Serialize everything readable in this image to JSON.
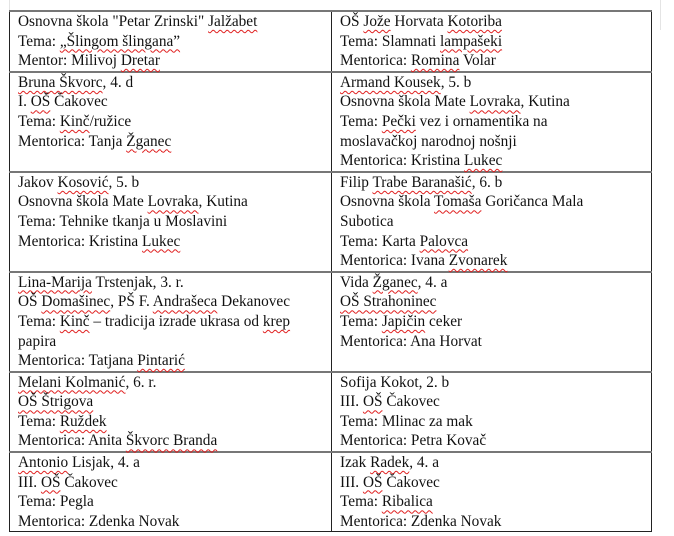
{
  "rows": [
    [
      {
        "lines": [
          "Osnovna škola \"Petar Zrinski\" Jalžabet",
          "Tema:  „Šlingom šlingana”",
          "Mentor: Milivoj Dretar"
        ],
        "misspelled": [
          "Jalžabet",
          "„Šlingom šlingana”",
          "Dretar"
        ]
      },
      {
        "lines": [
          "OŠ Jože Horvata Kotoriba",
          "Tema: Slamnati lampašeki",
          "Mentorica: Romina Volar"
        ],
        "misspelled": [
          "Jože",
          "Kotoriba",
          "lampašeki",
          "Romina"
        ]
      }
    ],
    [
      {
        "lines": [
          "Bruna Škvorc, 4. d",
          "I. OŠ Čakovec",
          "Tema: Kinč/ružice",
          "Mentorica: Tanja Žganec"
        ],
        "misspelled": [
          "Bruna Škvorc",
          "OŠ",
          "Kinč",
          "Žganec"
        ]
      },
      {
        "lines": [
          "Armand Kousek, 5. b",
          "Osnovna škola Mate Lovraka, Kutina",
          "Tema: Pečki vez i ornamentika na",
          "moslavačkoj narodnoj nošnji",
          "Mentorica: Kristina Lukec"
        ],
        "misspelled": [
          "Armand Kousek",
          "Lovraka",
          "Pečki",
          "Lukec"
        ]
      }
    ],
    [
      {
        "lines": [
          "Jakov Kosović, 5. b",
          "Osnovna škola Mate Lovraka, Kutina",
          "Tema: Tehnike tkanja u Moslavini",
          "Mentorica: Kristina Lukec"
        ],
        "misspelled": [
          "Kosović",
          "Lovraka",
          "Lukec"
        ]
      },
      {
        "lines": [
          "Filip Trabe Baranašić, 6. b",
          "Osnovna škola Tomaša Goričanca Mala",
          "Subotica",
          "Tema: Karta Palovca",
          "Mentorica: Ivana Zvonarek"
        ],
        "misspelled": [
          "Trabe Baranašić",
          "Tomaša",
          "Palovca",
          "Zvonarek"
        ]
      }
    ],
    [
      {
        "lines": [
          "Lina-Marija Trstenjak, 3. r.",
          "OŠ Domašinec, PŠ F. Andrašeca Dekanovec",
          "Tema: Kinč – tradicija izrade ukrasa od krep",
          "papira",
          "Mentorica: Tatjana Pintarić"
        ],
        "misspelled": [
          "Lina-Marija",
          "Domašinec",
          "Andrašeca",
          "Kinč",
          "krep",
          "Pintarić"
        ]
      },
      {
        "lines": [
          "Vida Žganec, 4. a",
          "OŠ Strahoninec",
          "Tema: Japičin ceker",
          "Mentorica: Ana Horvat"
        ],
        "misspelled": [
          "Žganec",
          "OŠ Strahoninec",
          "Japičin"
        ]
      }
    ],
    [
      {
        "lines": [
          "Melani Kolmanić, 6. r.",
          "OŠ Štrigova",
          "Tema: Ruždek",
          "Mentorica: Anita Škvorc Branda"
        ],
        "misspelled": [
          "Melani Kolmanić",
          "OŠ Štrigova",
          "Ruždek",
          "Škvorc Branda"
        ]
      },
      {
        "lines": [
          "Sofija Kokot, 2. b",
          "III. OŠ Čakovec",
          "Tema: Mlinac za mak",
          "Mentorica: Petra Kovač"
        ],
        "misspelled": [
          "OŠ"
        ]
      }
    ],
    [
      {
        "lines": [
          "Antonio Lisjak, 4. a",
          "III. OŠ Čakovec",
          "Tema: Pegla",
          "Mentorica: Zdenka Novak"
        ],
        "misspelled": [
          "Antonio",
          "OŠ"
        ]
      },
      {
        "lines": [
          "Izak Radek, 4. a",
          "III. OŠ Čakovec",
          "Tema: Ribalica",
          "Mentorica: Zdenka Novak"
        ],
        "misspelled": [
          "Radek",
          "OŠ",
          "Ribalica"
        ]
      }
    ]
  ],
  "colors": {
    "spellcheck_underline": "#e02020",
    "border": "#222222"
  }
}
